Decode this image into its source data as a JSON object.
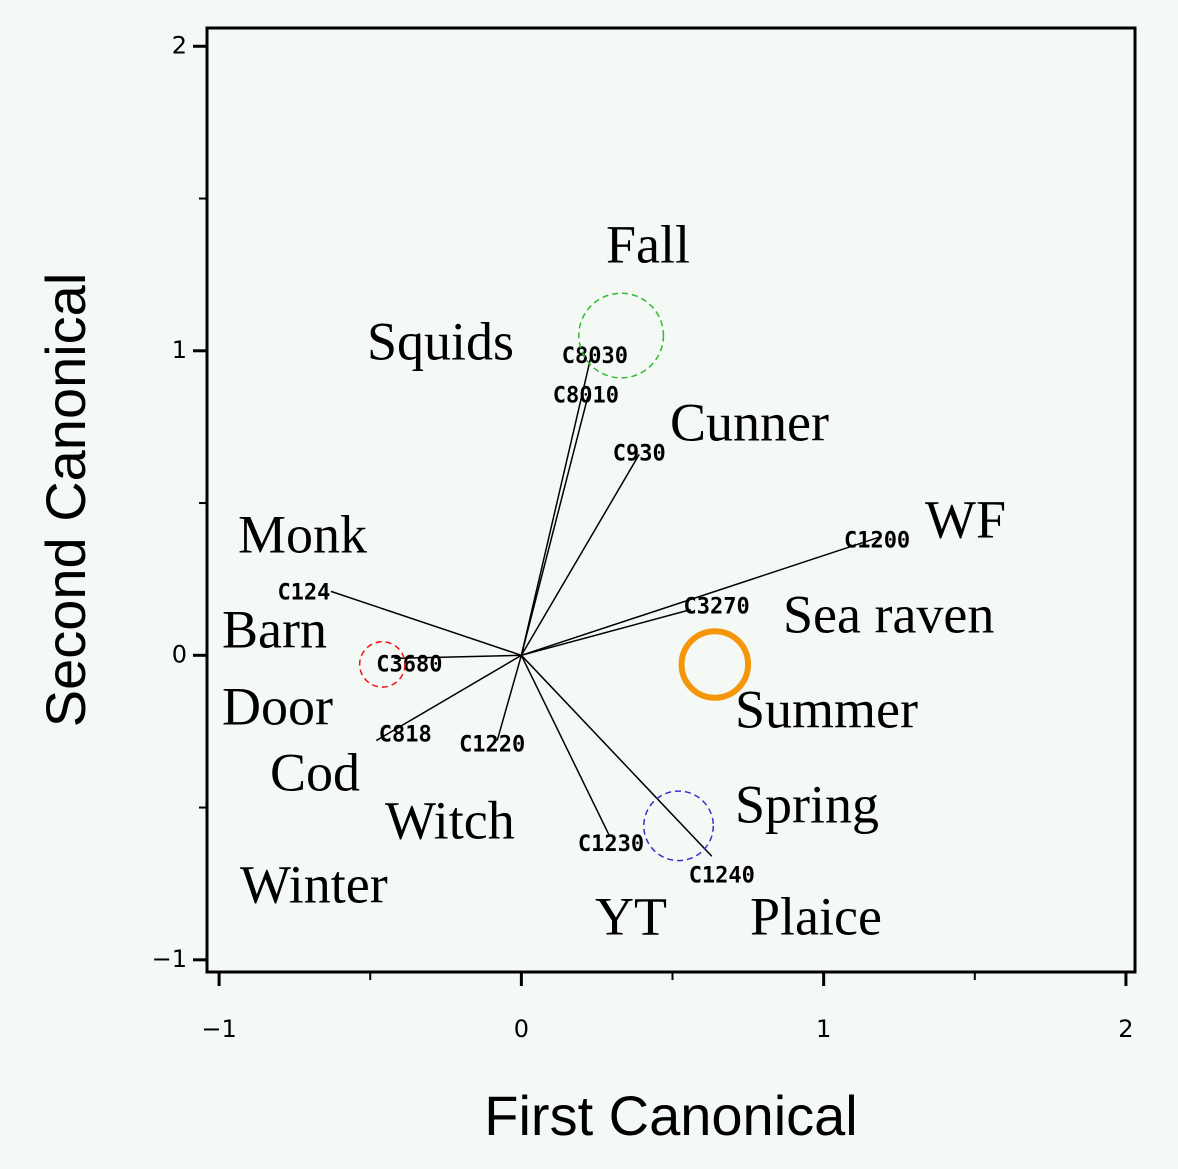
{
  "chart_data": {
    "type": "biplot",
    "x_label": "First Canonical",
    "y_label": "Second Canonical",
    "xlim": [
      -1.04,
      2.03
    ],
    "ylim": [
      -1.04,
      2.06
    ],
    "xticks": [
      {
        "value": -1,
        "label": "−1"
      },
      0,
      1,
      2
    ],
    "yticks": [
      {
        "value": -1,
        "label": "−1"
      },
      0,
      1,
      2
    ],
    "xminorticks": [
      -0.5,
      0.5,
      1.5
    ],
    "yminorticks": [
      -0.5,
      0.5,
      1.5
    ],
    "vectors": {
      "codes": [
        "C8030",
        "C8010",
        "C930",
        "C1200",
        "C3270",
        "C124",
        "C3680",
        "C818",
        "C1220",
        "C1230",
        "C1240"
      ],
      "x": [
        0.23,
        0.22,
        0.39,
        1.19,
        0.56,
        -0.63,
        -0.42,
        -0.48,
        -0.08,
        0.29,
        0.63
      ],
      "y": [
        0.98,
        0.85,
        0.66,
        0.39,
        0.15,
        0.21,
        -0.01,
        -0.28,
        -0.28,
        -0.59,
        -0.66
      ],
      "color": "#000000"
    },
    "species_labels": [
      "Squids",
      "Cunner",
      "WF",
      "Sea raven",
      "Monk",
      "Barn",
      "Door",
      "Cod",
      "Witch",
      "YT",
      "Plaice"
    ],
    "series": [
      {
        "name": "Fall",
        "color": "#33bb33",
        "x": [
          0.33
        ],
        "values": [
          1.05
        ],
        "radius": [
          0.14
        ],
        "dashed": true
      },
      {
        "name": "Summer",
        "color": "#f5960a",
        "x": [
          0.64
        ],
        "values": [
          -0.03
        ],
        "radius": [
          0.11
        ],
        "dashed": false
      },
      {
        "name": "Spring",
        "color": "#3333cc",
        "x": [
          0.52
        ],
        "values": [
          -0.56
        ],
        "radius": [
          0.115
        ],
        "dashed": true
      },
      {
        "name": "Winter",
        "color": "#ee1111",
        "x": [
          -0.46
        ],
        "values": [
          -0.03
        ],
        "radius": [
          0.075
        ],
        "dashed": true
      }
    ]
  }
}
